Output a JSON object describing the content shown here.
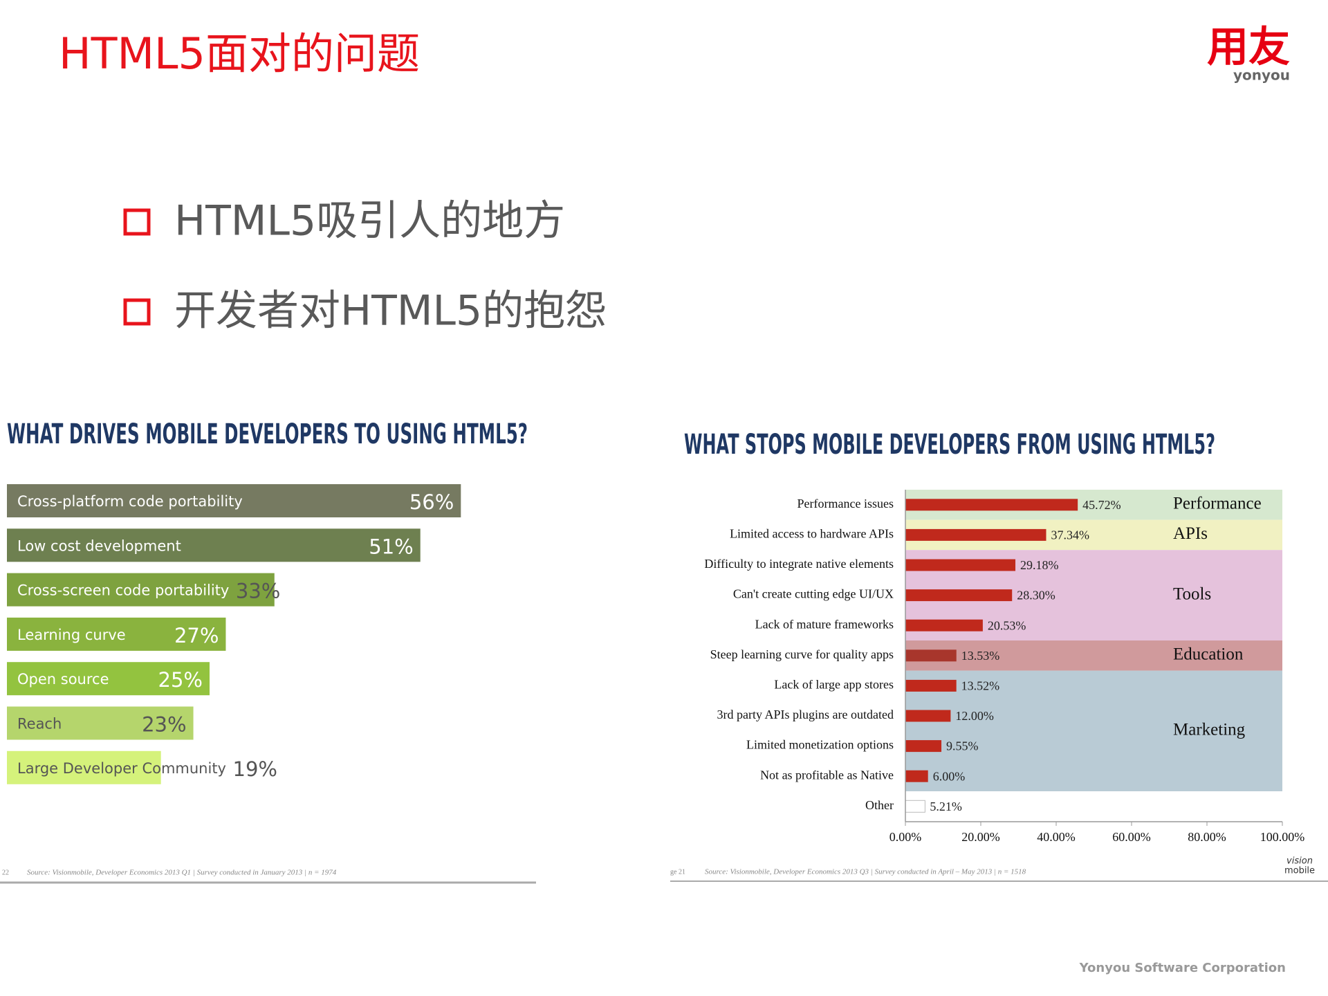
{
  "header": {
    "title": "HTML5面对的问题",
    "logo": "用友",
    "logo_sub": "yonyou"
  },
  "bullets": [
    "HTML5吸引人的地方",
    "开发者对HTML5的抱怨"
  ],
  "chart_data": [
    {
      "type": "bar",
      "title": "WHAT DRIVES MOBILE DEVELOPERS TO USING HTML5?",
      "categories": [
        "Cross-platform code portability",
        "Low cost development",
        "Cross-screen code portability",
        "Learning curve",
        "Open source",
        "Reach",
        "Large Developer Community"
      ],
      "values": [
        56,
        51,
        33,
        27,
        25,
        23,
        19
      ],
      "value_labels": [
        "56%",
        "51%",
        "33%",
        "27%",
        "25%",
        "23%",
        "19%"
      ],
      "colors": [
        "#767a61",
        "#6e8050",
        "#7ea23f",
        "#8ab33e",
        "#93c33f",
        "#b5d56c",
        "#d5f27b"
      ],
      "label_colors": [
        "#ffffff",
        "#ffffff",
        "#ffffff",
        "#ffffff",
        "#ffffff",
        "#555555",
        "#555555"
      ],
      "source_page": "22",
      "source": "Source: Visionmobile, Developer Economics 2013 Q1 | Survey conducted in January 2013 | n = 1974"
    },
    {
      "type": "bar",
      "title": "WHAT STOPS MOBILE DEVELOPERS FROM USING HTML5?",
      "categories": [
        "Performance issues",
        "Limited access to hardware APIs",
        "Difficulty to integrate native elements",
        "Can't create cutting edge UI/UX",
        "Lack of mature frameworks",
        "Steep learning curve for quality apps",
        "Lack of large app stores",
        "3rd party APIs plugins are outdated",
        "Limited monetization options",
        "Not as profitable as Native",
        "Other"
      ],
      "values": [
        45.72,
        37.34,
        29.18,
        28.3,
        20.53,
        13.53,
        13.52,
        12,
        9.55,
        6,
        5.21
      ],
      "value_labels": [
        "45.72%",
        "37.34%",
        "29.18%",
        "28.30%",
        "20.53%",
        "13.53%",
        "13.52%",
        "12.00%",
        "9.55%",
        "6.00%",
        "5.21%"
      ],
      "colors": [
        "#c0291c",
        "#c0291c",
        "#c0291c",
        "#c0291c",
        "#c0291c",
        "#a8362c",
        "#c0291c",
        "#c0291c",
        "#c0291c",
        "#c0291c",
        "#ffffff"
      ],
      "xlim": [
        0,
        100
      ],
      "xticks": [
        {
          "value": 0,
          "label": "0.00%"
        },
        {
          "value": 20,
          "label": "20.00%"
        },
        {
          "value": 40,
          "label": "40.00%"
        },
        {
          "value": 60,
          "label": "60.00%"
        },
        {
          "value": 80,
          "label": "80.00%"
        },
        {
          "value": 100,
          "label": "100.00%"
        }
      ],
      "groups": [
        {
          "name": "Performance",
          "rows": 1,
          "color": "#d6e8cf"
        },
        {
          "name": "APIs",
          "rows": 1,
          "color": "#f1f1c2"
        },
        {
          "name": "Tools",
          "rows": 3,
          "color": "#e5c2dc"
        },
        {
          "name": "Education",
          "rows": 1,
          "color": "#d09a9c"
        },
        {
          "name": "Marketing",
          "rows": 4,
          "color": "#b9cbd5"
        }
      ],
      "source_page": "ge 21",
      "source": "Source: Visionmobile, Developer Economics 2013 Q3 | Survey conducted in April – May 2013 | n = 1518",
      "logo": [
        "vision",
        "mobile"
      ]
    }
  ],
  "footer": "Yonyou Software Corporation"
}
